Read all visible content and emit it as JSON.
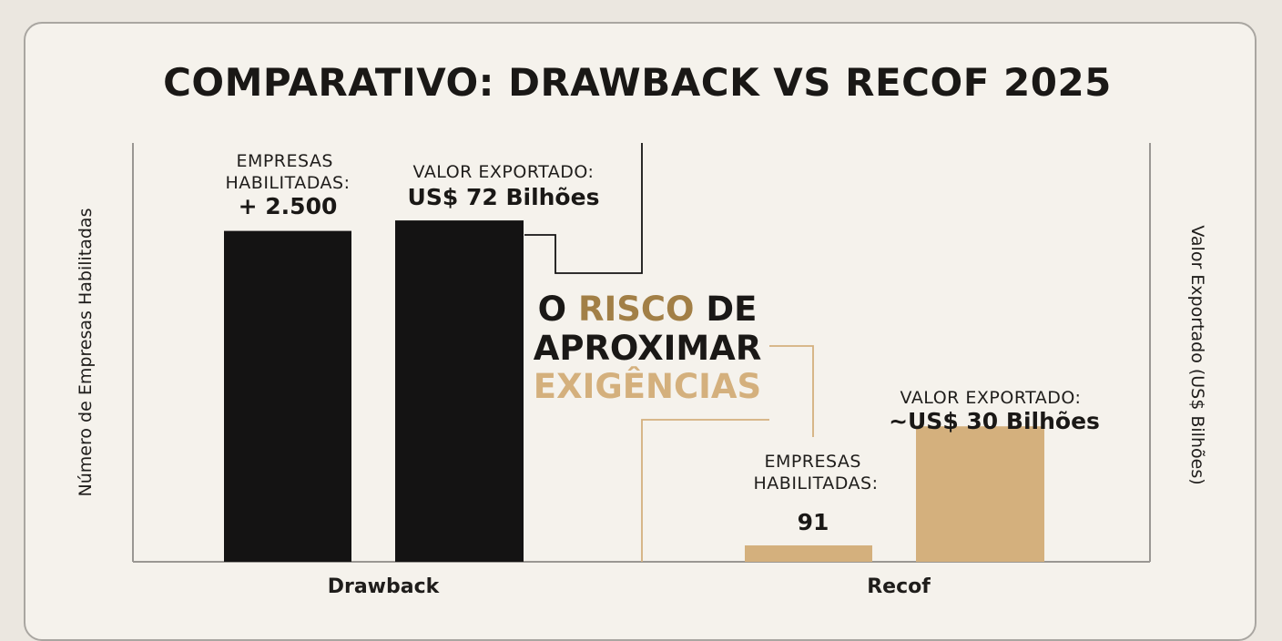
{
  "chart_data": {
    "type": "bar",
    "title": "COMPARATIVO: DRAWBACK VS RECOF 2025",
    "y_left_label": "Número de Empresas Habilitadas",
    "y_right_label": "Valor Exportado (US$ Bilhões)",
    "categories": [
      "Drawback",
      "Recof"
    ],
    "series": [
      {
        "measure": "empresas",
        "values": [
          2500,
          91
        ],
        "label_heading": "EMPRESAS HABILITADAS:",
        "value_labels": [
          "+ 2.500",
          "91"
        ]
      },
      {
        "measure": "valor",
        "values": [
          72,
          30
        ],
        "label_heading": "VALOR EXPORTADO:",
        "value_labels": [
          "US$ 72 Bilhões",
          "~US$ 30 Bilhões"
        ]
      }
    ],
    "colors": {
      "Drawback": "#141313",
      "Recof": "#d4b07d"
    },
    "annotation": {
      "words": [
        "O",
        "RISCO",
        "DE",
        "APROXIMAR",
        "EXIGÊNCIAS"
      ],
      "colors": {
        "dark": "#1a1816",
        "risk": "#a27f46",
        "exig": "#d4b07d"
      }
    },
    "grid": false,
    "legend": "none"
  }
}
